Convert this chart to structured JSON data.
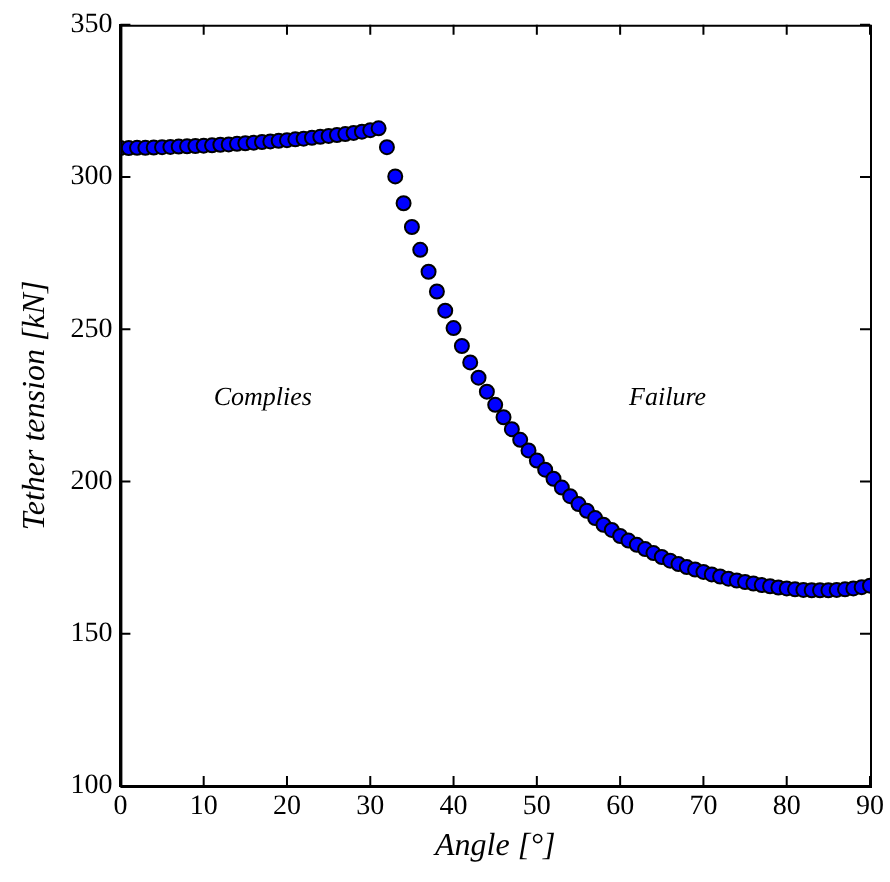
{
  "chart_data": {
    "type": "scatter",
    "xlabel": "Angle [°]",
    "ylabel": "Tether tension [kN]",
    "x": [
      0,
      1,
      2,
      3,
      4,
      5,
      6,
      7,
      8,
      9,
      10,
      11,
      12,
      13,
      14,
      15,
      16,
      17,
      18,
      19,
      20,
      21,
      22,
      23,
      24,
      25,
      26,
      27,
      28,
      29,
      30,
      31,
      32,
      33,
      34,
      35,
      36,
      37,
      38,
      39,
      40,
      41,
      42,
      43,
      44,
      45,
      46,
      47,
      48,
      49,
      50,
      51,
      52,
      53,
      54,
      55,
      56,
      57,
      58,
      59,
      60,
      61,
      62,
      63,
      64,
      65,
      66,
      67,
      68,
      69,
      70,
      71,
      72,
      73,
      74,
      75,
      76,
      77,
      78,
      79,
      80,
      81,
      82,
      83,
      84,
      85,
      86,
      87,
      88,
      89,
      90
    ],
    "series": [
      {
        "color": "#0000ff",
        "values": [
          309.5,
          309.5,
          309.6,
          309.6,
          309.7,
          309.8,
          309.9,
          310.0,
          310.1,
          310.2,
          310.3,
          310.4,
          310.6,
          310.7,
          310.9,
          311.1,
          311.3,
          311.5,
          311.7,
          311.9,
          312.1,
          312.4,
          312.6,
          312.9,
          313.2,
          313.5,
          313.8,
          314.1,
          314.5,
          314.9,
          315.4,
          316.0,
          309.8,
          300.2,
          291.4,
          283.6,
          276.1,
          268.9,
          262.4,
          256.1,
          250.4,
          244.5,
          239.1,
          234.1,
          229.5,
          225.2,
          221.1,
          217.2,
          213.7,
          210.2,
          206.9,
          203.9,
          200.9,
          198.0,
          195.2,
          192.6,
          190.4,
          188.0,
          185.8,
          184.1,
          182.1,
          180.6,
          179.2,
          177.8,
          176.5,
          175.2,
          174.0,
          172.9,
          171.9,
          171.1,
          170.3,
          169.5,
          168.8,
          168.1,
          167.5,
          167.0,
          166.5,
          166.0,
          165.6,
          165.2,
          164.9,
          164.6,
          164.4,
          164.3,
          164.3,
          164.3,
          164.4,
          164.6,
          164.9,
          165.3,
          165.8
        ]
      }
    ],
    "xlim": [
      0,
      90
    ],
    "xticks": [
      0,
      10,
      20,
      30,
      40,
      50,
      60,
      70,
      80,
      90
    ],
    "ylim": [
      100,
      350
    ],
    "yticks": [
      100,
      150,
      200,
      250,
      300,
      350
    ],
    "grid": false,
    "legend": false,
    "marker": "circle",
    "annotations": [
      "Complies",
      "Failure"
    ]
  }
}
